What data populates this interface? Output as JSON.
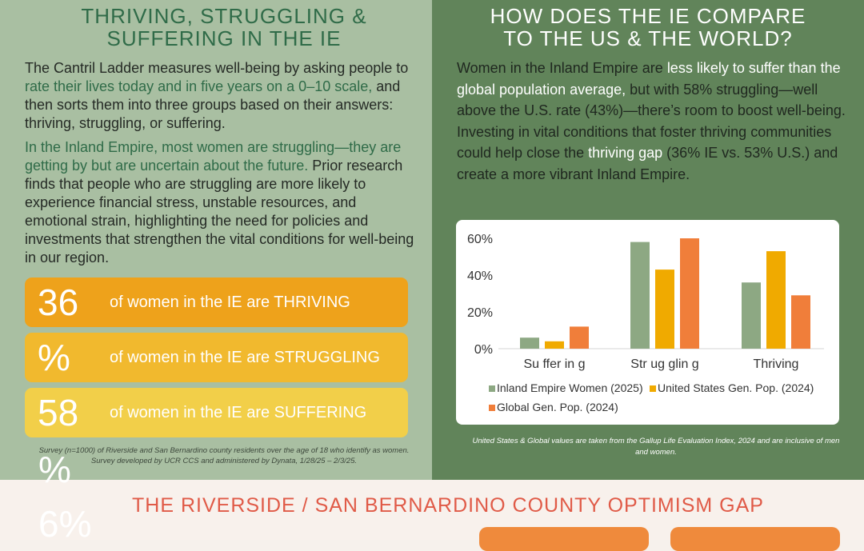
{
  "left": {
    "title_line1": "THRIVING, STRUGGLING &",
    "title_line2": "SUFFERING IN THE IE",
    "p1_a": "The Cantril Ladder measures well-being by asking people to ",
    "p1_b": "rate their lives today and in five years on a 0–10 scale,",
    "p1_c": " and then sorts them into three groups based on their answers: thriving, struggling, or suffering.",
    "p2_a": "In the Inland Empire, most women are struggling—they are getting by but are uncertain about the future.",
    "p2_b": " Prior research finds that people who are struggling are more likely to experience financial stress, unstable resources, and emotional strain, highlighting the need for policies and investments that strengthen the vital conditions for well-being in our region.",
    "stats": [
      {
        "number": "36",
        "label": "of women in the IE are THRIVING",
        "color": "#eea21b"
      },
      {
        "number": "%",
        "label": "of women in the IE are STRUGGLING",
        "color": "#f1b92e"
      },
      {
        "number": "58",
        "label": "of women in the IE are SUFFERING",
        "color": "#f2cf49"
      }
    ],
    "overflow_a": "%",
    "overflow_b": "6%",
    "survey_note": "Survey (n=1000) of Riverside and San Bernardino county residents over the age of 18 who identify as women. Survey developed by UCR CCS and administered by Dynata, 1/28/25 – 2/3/25."
  },
  "right": {
    "title_line1": "HOW DOES THE IE COMPARE",
    "title_line2": "TO THE US & THE WORLD?",
    "p_a": "Women in the Inland Empire are ",
    "p_b": "less likely to suffer than the global population average,",
    "p_c": " but with 58% struggling—well above the U.S. rate (43%)—there’s room to boost well-being. Investing in vital conditions that foster thriving communities could help close the ",
    "p_d": "thriving gap",
    "p_e": " (36% IE vs. 53% U.S.) and create a more vibrant Inland Empire.",
    "chart_note": "United States & Global values are taken from the Gallup Life Evaluation Index, 2024 and are inclusive of men and women."
  },
  "bottom": {
    "title": "THE RIVERSIDE / SAN BERNARDINO COUNTY OPTIMISM GAP"
  },
  "colors": {
    "ie": "#8da883",
    "us": "#f0aa00",
    "global": "#f07e3a"
  },
  "chart_data": {
    "type": "bar",
    "categories": [
      "Su ffer in g",
      "Str ug glin g",
      "Thriving"
    ],
    "series": [
      {
        "name": "Inland Empire Women (2025)",
        "values": [
          6,
          58,
          36
        ]
      },
      {
        "name": "United States Gen. Pop. (2024)",
        "values": [
          4,
          43,
          53
        ]
      },
      {
        "name": "Global Gen. Pop. (2024)",
        "values": [
          12,
          60,
          29
        ]
      }
    ],
    "yticks": [
      "0%",
      "20%",
      "40%",
      "60%"
    ],
    "ylim": [
      0,
      60
    ],
    "grid": false,
    "legend": "bottom"
  }
}
